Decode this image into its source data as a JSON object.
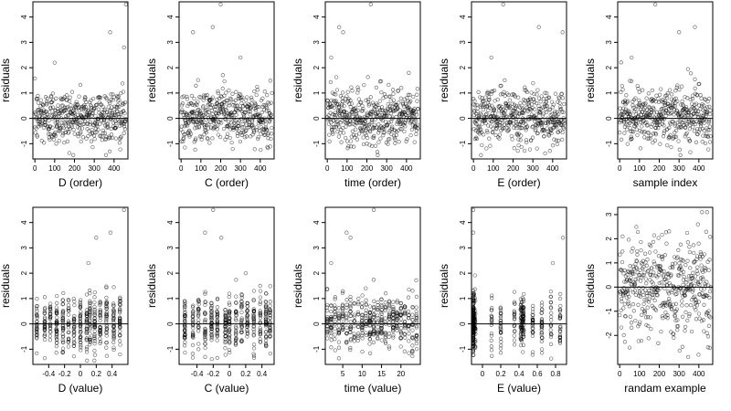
{
  "figure": {
    "ylabel": "residuals",
    "zero_line": true,
    "point_style": "open-circle",
    "point_color": "#000000"
  },
  "chart_data": [
    {
      "type": "scatter",
      "xlabel": "D (order)",
      "ylabel": "residuals",
      "xlim": [
        -10,
        470
      ],
      "ylim": [
        -1.6,
        4.6
      ],
      "xticks": [
        0,
        100,
        200,
        300,
        400
      ],
      "yticks": [
        -1,
        0,
        1,
        2,
        3,
        4
      ],
      "pattern": "order",
      "series": [
        {
          "n": 460,
          "outliers": [
            [
              460,
              4.5
            ],
            [
              380,
              3.4
            ],
            [
              450,
              2.8
            ],
            [
              100,
              2.2
            ]
          ]
        }
      ]
    },
    {
      "type": "scatter",
      "xlabel": "C (order)",
      "ylabel": "residuals",
      "xlim": [
        -10,
        470
      ],
      "ylim": [
        -1.6,
        4.6
      ],
      "xticks": [
        0,
        100,
        200,
        300,
        400
      ],
      "yticks": [
        -1,
        0,
        1,
        2,
        3,
        4
      ],
      "pattern": "order",
      "series": [
        {
          "n": 460,
          "outliers": [
            [
              200,
              4.5
            ],
            [
              160,
              3.6
            ],
            [
              60,
              3.4
            ],
            [
              300,
              2.4
            ]
          ]
        }
      ]
    },
    {
      "type": "scatter",
      "xlabel": "time (order)",
      "ylabel": "residuals",
      "xlim": [
        -10,
        470
      ],
      "ylim": [
        -1.6,
        4.6
      ],
      "xticks": [
        0,
        100,
        200,
        300,
        400
      ],
      "yticks": [
        -1,
        0,
        1,
        2,
        3,
        4
      ],
      "pattern": "order",
      "series": [
        {
          "n": 460,
          "outliers": [
            [
              220,
              4.5
            ],
            [
              60,
              3.6
            ],
            [
              80,
              3.4
            ],
            [
              20,
              2.4
            ]
          ]
        }
      ]
    },
    {
      "type": "scatter",
      "xlabel": "E (order)",
      "ylabel": "residuals",
      "xlim": [
        -10,
        470
      ],
      "ylim": [
        -1.6,
        4.6
      ],
      "xticks": [
        0,
        100,
        200,
        300,
        400
      ],
      "yticks": [
        -1,
        0,
        1,
        2,
        3,
        4
      ],
      "pattern": "order",
      "series": [
        {
          "n": 460,
          "outliers": [
            [
              150,
              4.5
            ],
            [
              330,
              3.6
            ],
            [
              450,
              3.4
            ],
            [
              90,
              2.4
            ]
          ]
        }
      ]
    },
    {
      "type": "scatter",
      "xlabel": "sample index",
      "ylabel": "residuals",
      "xlim": [
        -10,
        470
      ],
      "ylim": [
        -1.6,
        4.6
      ],
      "xticks": [
        0,
        100,
        200,
        300,
        400
      ],
      "yticks": [
        -1,
        0,
        1,
        2,
        3,
        4
      ],
      "pattern": "order",
      "series": [
        {
          "n": 460,
          "outliers": [
            [
              180,
              4.5
            ],
            [
              380,
              3.6
            ],
            [
              300,
              3.4
            ],
            [
              60,
              2.4
            ]
          ]
        }
      ]
    },
    {
      "type": "scatter",
      "xlabel": "D (value)",
      "ylabel": "residuals",
      "xlim": [
        -0.6,
        0.6
      ],
      "ylim": [
        -1.6,
        4.6
      ],
      "xticks": [
        -0.4,
        -0.2,
        0.0,
        0.2,
        0.4
      ],
      "yticks": [
        -1,
        0,
        1,
        2,
        3,
        4
      ],
      "pattern": "columns",
      "x_levels": [
        -0.55,
        -0.45,
        -0.38,
        -0.3,
        -0.22,
        -0.15,
        -0.08,
        0.0,
        0.08,
        0.12,
        0.18,
        0.25,
        0.33,
        0.42,
        0.5
      ],
      "series": [
        {
          "n": 460,
          "outliers": [
            [
              0.55,
              4.5
            ],
            [
              0.38,
              3.6
            ],
            [
              0.2,
              3.4
            ],
            [
              0.1,
              2.4
            ]
          ]
        }
      ]
    },
    {
      "type": "scatter",
      "xlabel": "C (value)",
      "ylabel": "residuals",
      "xlim": [
        -0.62,
        0.55
      ],
      "ylim": [
        -1.6,
        4.6
      ],
      "xticks": [
        -0.4,
        -0.2,
        0.0,
        0.2,
        0.4
      ],
      "yticks": [
        -1,
        0,
        1,
        2,
        3,
        4
      ],
      "pattern": "columns",
      "x_levels": [
        -0.55,
        -0.45,
        -0.38,
        -0.3,
        -0.22,
        -0.15,
        -0.05,
        0.0,
        0.08,
        0.15,
        0.22,
        0.3,
        0.38,
        0.45,
        0.5
      ],
      "series": [
        {
          "n": 460,
          "outliers": [
            [
              -0.2,
              4.5
            ],
            [
              -0.3,
              3.6
            ],
            [
              -0.1,
              3.4
            ],
            [
              0.2,
              2.0
            ]
          ]
        }
      ]
    },
    {
      "type": "scatter",
      "xlabel": "time (value)",
      "ylabel": "residuals",
      "xlim": [
        0.5,
        25
      ],
      "ylim": [
        -1.6,
        4.6
      ],
      "xticks": [
        5,
        10,
        15,
        20
      ],
      "yticks": [
        -1,
        0,
        1,
        2,
        3,
        4
      ],
      "pattern": "columns",
      "x_levels": [
        1,
        2,
        3,
        4,
        5,
        6,
        7,
        8,
        9,
        10,
        11,
        12,
        13,
        14,
        15,
        16,
        17,
        18,
        19,
        20,
        21,
        22,
        23,
        24
      ],
      "series": [
        {
          "n": 460,
          "outliers": [
            [
              13,
              4.5
            ],
            [
              6,
              3.6
            ],
            [
              7,
              3.4
            ],
            [
              2,
              2.4
            ]
          ]
        }
      ]
    },
    {
      "type": "scatter",
      "xlabel": "E (value)",
      "ylabel": "residuals",
      "xlim": [
        -0.12,
        0.92
      ],
      "ylim": [
        -1.6,
        4.6
      ],
      "xticks": [
        0.0,
        0.2,
        0.4,
        0.6,
        0.8
      ],
      "yticks": [
        -1,
        0,
        1,
        2,
        3,
        4
      ],
      "pattern": "columns",
      "x_levels": [
        -0.1,
        -0.1,
        -0.1,
        -0.1,
        -0.1,
        -0.1,
        -0.09,
        -0.08,
        0.1,
        0.2,
        0.35,
        0.42,
        0.43,
        0.44,
        0.45,
        0.55,
        0.65,
        0.75,
        0.85
      ],
      "series": [
        {
          "n": 460,
          "outliers": [
            [
              -0.1,
              4.5
            ],
            [
              -0.1,
              3.6
            ],
            [
              0.88,
              3.4
            ],
            [
              0.77,
              2.4
            ]
          ]
        }
      ]
    },
    {
      "type": "scatter",
      "xlabel": "randam example",
      "ylabel": "residuals",
      "xlim": [
        -10,
        470
      ],
      "ylim": [
        -3.2,
        3.3
      ],
      "xticks": [
        0,
        100,
        200,
        300,
        400
      ],
      "yticks": [
        -2,
        -1,
        0,
        1,
        2,
        3
      ],
      "pattern": "random",
      "series": [
        {
          "n": 460,
          "outliers": []
        }
      ]
    }
  ]
}
